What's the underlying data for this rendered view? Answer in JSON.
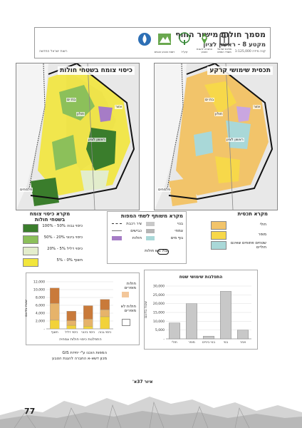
{
  "header": {
    "title": "מסמך חולות מישור החוף",
    "subtitle": "מקטע 8 - ראשון לציון",
    "scale": "קנה מידה 1:125,000",
    "date_note": "רשות ישראל החדשה",
    "logos": [
      {
        "icon": "water-drop-logo",
        "caption": ""
      },
      {
        "icon": "nature-authority-logo",
        "caption": "רשות הטבע והגנים"
      },
      {
        "icon": "tree-logo",
        "caption": "קק\"ל"
      },
      {
        "icon": "people-logo",
        "caption": "החברה להגנת הטבע"
      },
      {
        "icon": "state-emblem-logo",
        "caption": "מדינת ישראל משרד הפנים"
      }
    ]
  },
  "maps": {
    "left_title": "כיסוי צומח בשטחי חולות",
    "right_title": "תכסית שימושי קרקע",
    "places": [
      "בת ים",
      "חולון",
      "אזור",
      "ראשון לציון",
      "פלמחים"
    ]
  },
  "legends": {
    "vegetation": {
      "title": "מקרא כיסוי צומח בשטחי חולות",
      "items": [
        {
          "label": "כיסוי גבוה 50% - 100%",
          "color": "#3a7d2c"
        },
        {
          "label": "כיסוי בינוני 20% - 50%",
          "color": "#8cc05a"
        },
        {
          "label": "כיסוי דליל 5% - 20%",
          "color": "#e3edcc"
        },
        {
          "label": "חשוף 0% - 5%",
          "color": "#f2e63c"
        }
      ]
    },
    "common": {
      "title": "מקרא משותף לשתי המפות",
      "items": [
        {
          "label": "ציר רכבת",
          "style": "rail"
        },
        {
          "label": "כבישים",
          "style": "road"
        },
        {
          "label": "חולות",
          "style": "purple"
        },
        {
          "label": "בנוי",
          "style": "gray"
        },
        {
          "label": "צמחי",
          "style": "gray"
        },
        {
          "label": "גוף מים",
          "style": "cyan"
        },
        {
          "label": "גבול גוש חולות",
          "style": "boundary"
        }
      ]
    },
    "landuse": {
      "title": "מקרא תכסית",
      "items": [
        {
          "label": "חולי",
          "color": "#f2c46a"
        },
        {
          "label": "מופר",
          "color": "#f7d84a"
        },
        {
          "label": "שטחים פתוחים שאינם חוליים",
          "color": "#a9d8d8"
        }
      ]
    }
  },
  "chart_left": {
    "y_title": "שטח בדונם",
    "x_title": "התפלגות כיסוי חולות צמחיה",
    "legend": [
      {
        "label": "חולות מופרים",
        "color": "#f3c79a"
      },
      {
        "label": "חולות לא מופרים",
        "color": "#ffffff"
      }
    ],
    "chart_data": {
      "type": "bar",
      "stacked": true,
      "categories": [
        "חשוף",
        "כיסוי דליל",
        "כיסוי בינוני",
        "כיסוי גבוה"
      ],
      "series": [
        {
          "name": "",
          "values": [
            2200,
            900,
            700,
            3100
          ],
          "color": "#f2d23a"
        },
        {
          "name": "",
          "values": [
            4300,
            1200,
            1800,
            1800
          ],
          "color": "#e6b36a"
        },
        {
          "name": "",
          "values": [
            3900,
            2400,
            3400,
            2600
          ],
          "color": "#c97a3a"
        }
      ],
      "ylim": [
        0,
        12000
      ],
      "yticks": [
        0,
        2000,
        4000,
        6000,
        8000,
        10000,
        12000
      ],
      "ytick_labels": [
        "-",
        "2,000",
        "4,000",
        "6,000",
        "8,000",
        "10,000",
        "12,000"
      ],
      "grid": true
    }
  },
  "chart_right": {
    "title": "התפלגות שימושי שטח",
    "y_title": "שטח בדונם",
    "chart_data": {
      "type": "bar",
      "categories": [
        "חולי",
        "מופר",
        "בנוי ביניים",
        "בנוי",
        "אחר"
      ],
      "values": [
        9000,
        20000,
        1500,
        27000,
        5000
      ],
      "ylim": [
        0,
        30000
      ],
      "yticks": [
        0,
        5000,
        10000,
        15000,
        20000,
        25000,
        30000
      ],
      "ytick_labels": [
        "-",
        "5,000",
        "10,000",
        "15,000",
        "20,000",
        "25,000",
        "30,000"
      ],
      "grid": true,
      "color": "#c8c8c8"
    }
  },
  "gis_note": {
    "line1": "המפות הוכנו ע\"י יחידת GIS",
    "line2": "מכון דשא-א החברה להגנת הטבע"
  },
  "figure_caption": "איור 37א'",
  "page_number": "77"
}
